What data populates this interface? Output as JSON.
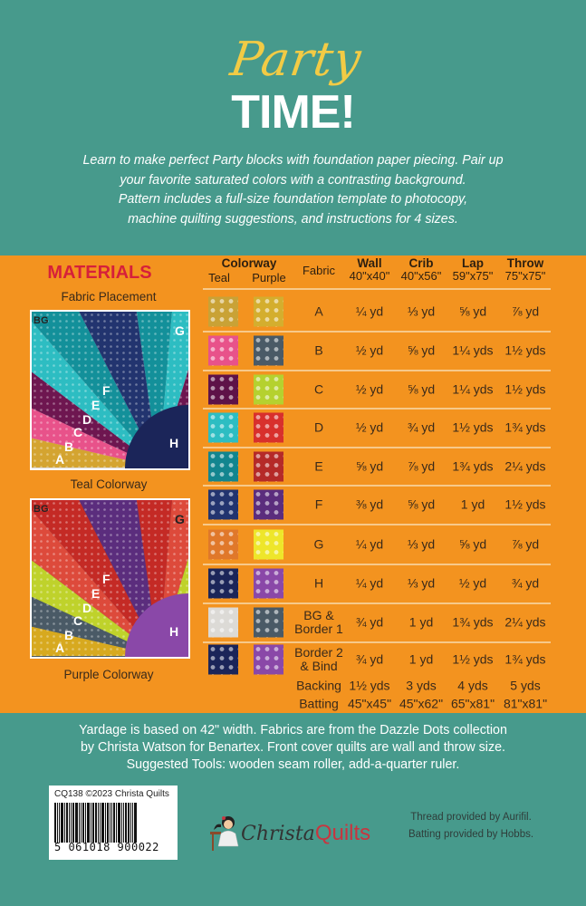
{
  "header": {
    "title_script": "Party",
    "title_bold": "TIME!",
    "intro": [
      "Learn to make perfect Party blocks with foundation paper piecing. Pair up",
      "your favorite saturated colors with a contrasting background.",
      "Pattern includes a full-size foundation template to photocopy,",
      "machine quilting suggestions, and instructions for 4 sizes."
    ]
  },
  "materials": {
    "title": "MATERIALS",
    "fabric_placement": "Fabric Placement",
    "quilts": [
      {
        "caption": "Teal Colorway",
        "labels": [
          "BG",
          "A",
          "B",
          "C",
          "D",
          "E",
          "F",
          "G",
          "H"
        ],
        "colors": {
          "BG": "#d9d6d2",
          "A": "#D4A430",
          "B": "#E8528A",
          "C": "#6E1650",
          "D": "#2DBDC2",
          "E": "#13909A",
          "F": "#22346F",
          "G": "#E87A2A",
          "H": "#1B2559"
        }
      },
      {
        "caption": "Purple Colorway",
        "labels": [
          "BG",
          "A",
          "B",
          "C",
          "D",
          "E",
          "F",
          "G",
          "H"
        ],
        "colors": {
          "BG": "#49585E",
          "A": "#D7A91F",
          "B": "#4A5A66",
          "C": "#BFD22B",
          "D": "#DD4A3B",
          "E": "#C42A25",
          "F": "#5B2D7D",
          "G": "#EEE62A",
          "H": "#8A48A8"
        }
      }
    ]
  },
  "table": {
    "headers": {
      "colorway": "Colorway",
      "teal": "Teal",
      "purple": "Purple",
      "fabric": "Fabric",
      "sizes": [
        {
          "name": "Wall",
          "dim": "40\"x40\""
        },
        {
          "name": "Crib",
          "dim": "40\"x56\""
        },
        {
          "name": "Lap",
          "dim": "59\"x75\""
        },
        {
          "name": "Throw",
          "dim": "75\"x75\""
        }
      ]
    },
    "rows": [
      {
        "fabric": "A",
        "teal": "#C9A236",
        "purple": "#D4AE2E",
        "values": [
          "¼ yd",
          "⅓ yd",
          "⅝ yd",
          "⅞ yd"
        ]
      },
      {
        "fabric": "B",
        "teal": "#E8528A",
        "purple": "#4A5A66",
        "values": [
          "½ yd",
          "⅝ yd",
          "1¼ yds",
          "1½ yds"
        ]
      },
      {
        "fabric": "C",
        "teal": "#5E1248",
        "purple": "#B5D12F",
        "values": [
          "½ yd",
          "⅝ yd",
          "1¼ yds",
          "1½ yds"
        ]
      },
      {
        "fabric": "D",
        "teal": "#2DBDC2",
        "purple": "#D8302C",
        "values": [
          "½ yd",
          "¾ yd",
          "1½ yds",
          "1¾ yds"
        ]
      },
      {
        "fabric": "E",
        "teal": "#12858F",
        "purple": "#B52A28",
        "values": [
          "⅝ yd",
          "⅞ yd",
          "1¾ yds",
          "2¼ yds"
        ]
      },
      {
        "fabric": "F",
        "teal": "#22346F",
        "purple": "#5B2D7D",
        "values": [
          "⅜ yd",
          "⅝ yd",
          "1 yd",
          "1½ yds"
        ]
      },
      {
        "fabric": "G",
        "teal": "#E0782A",
        "purple": "#EEE62A",
        "values": [
          "¼ yd",
          "⅓ yd",
          "⅝ yd",
          "⅞ yd"
        ]
      },
      {
        "fabric": "H",
        "teal": "#1B2559",
        "purple": "#8A48A8",
        "values": [
          "¼ yd",
          "⅓ yd",
          "½ yd",
          "¾ yd"
        ]
      },
      {
        "fabric": "BG & Border 1",
        "teal": "#DCDAD6",
        "purple": "#4A5A66",
        "values": [
          "¾ yd",
          "1 yd",
          "1¾ yds",
          "2¼ yds"
        ]
      },
      {
        "fabric": "Border 2 & Bind",
        "teal": "#1B2559",
        "purple": "#8A48A8",
        "values": [
          "¾ yd",
          "1 yd",
          "1½ yds",
          "1¾ yds"
        ]
      }
    ],
    "backing": {
      "label": "Backing",
      "values": [
        "1½ yds",
        "3 yds",
        "4 yds",
        "5 yds"
      ]
    },
    "batting": {
      "label": "Batting",
      "values": [
        "45\"x45\"",
        "45\"x62\"",
        "65\"x81\"",
        "81\"x81\""
      ]
    }
  },
  "footer": {
    "yardage": [
      "Yardage is based on 42\" width. Fabrics are from the Dazzle Dots collection",
      "by Christa Watson for Benartex. Front cover quilts are wall and throw size.",
      "Suggested Tools: wooden seam roller, add-a-quarter ruler."
    ],
    "barcode_top": "CQ138  ©2023 Christa Quilts",
    "barcode_number": "5 061018 900022",
    "logo": {
      "part1": "Christa",
      "part2": "Quilts"
    },
    "credits": [
      "Thread provided by Aurifil.",
      "Batting provided by Hobbs."
    ]
  },
  "colors": {
    "teal": "#479A8C",
    "orange": "#F3931F",
    "title_yellow": "#F2CB45",
    "materials_red": "#D6203A"
  }
}
